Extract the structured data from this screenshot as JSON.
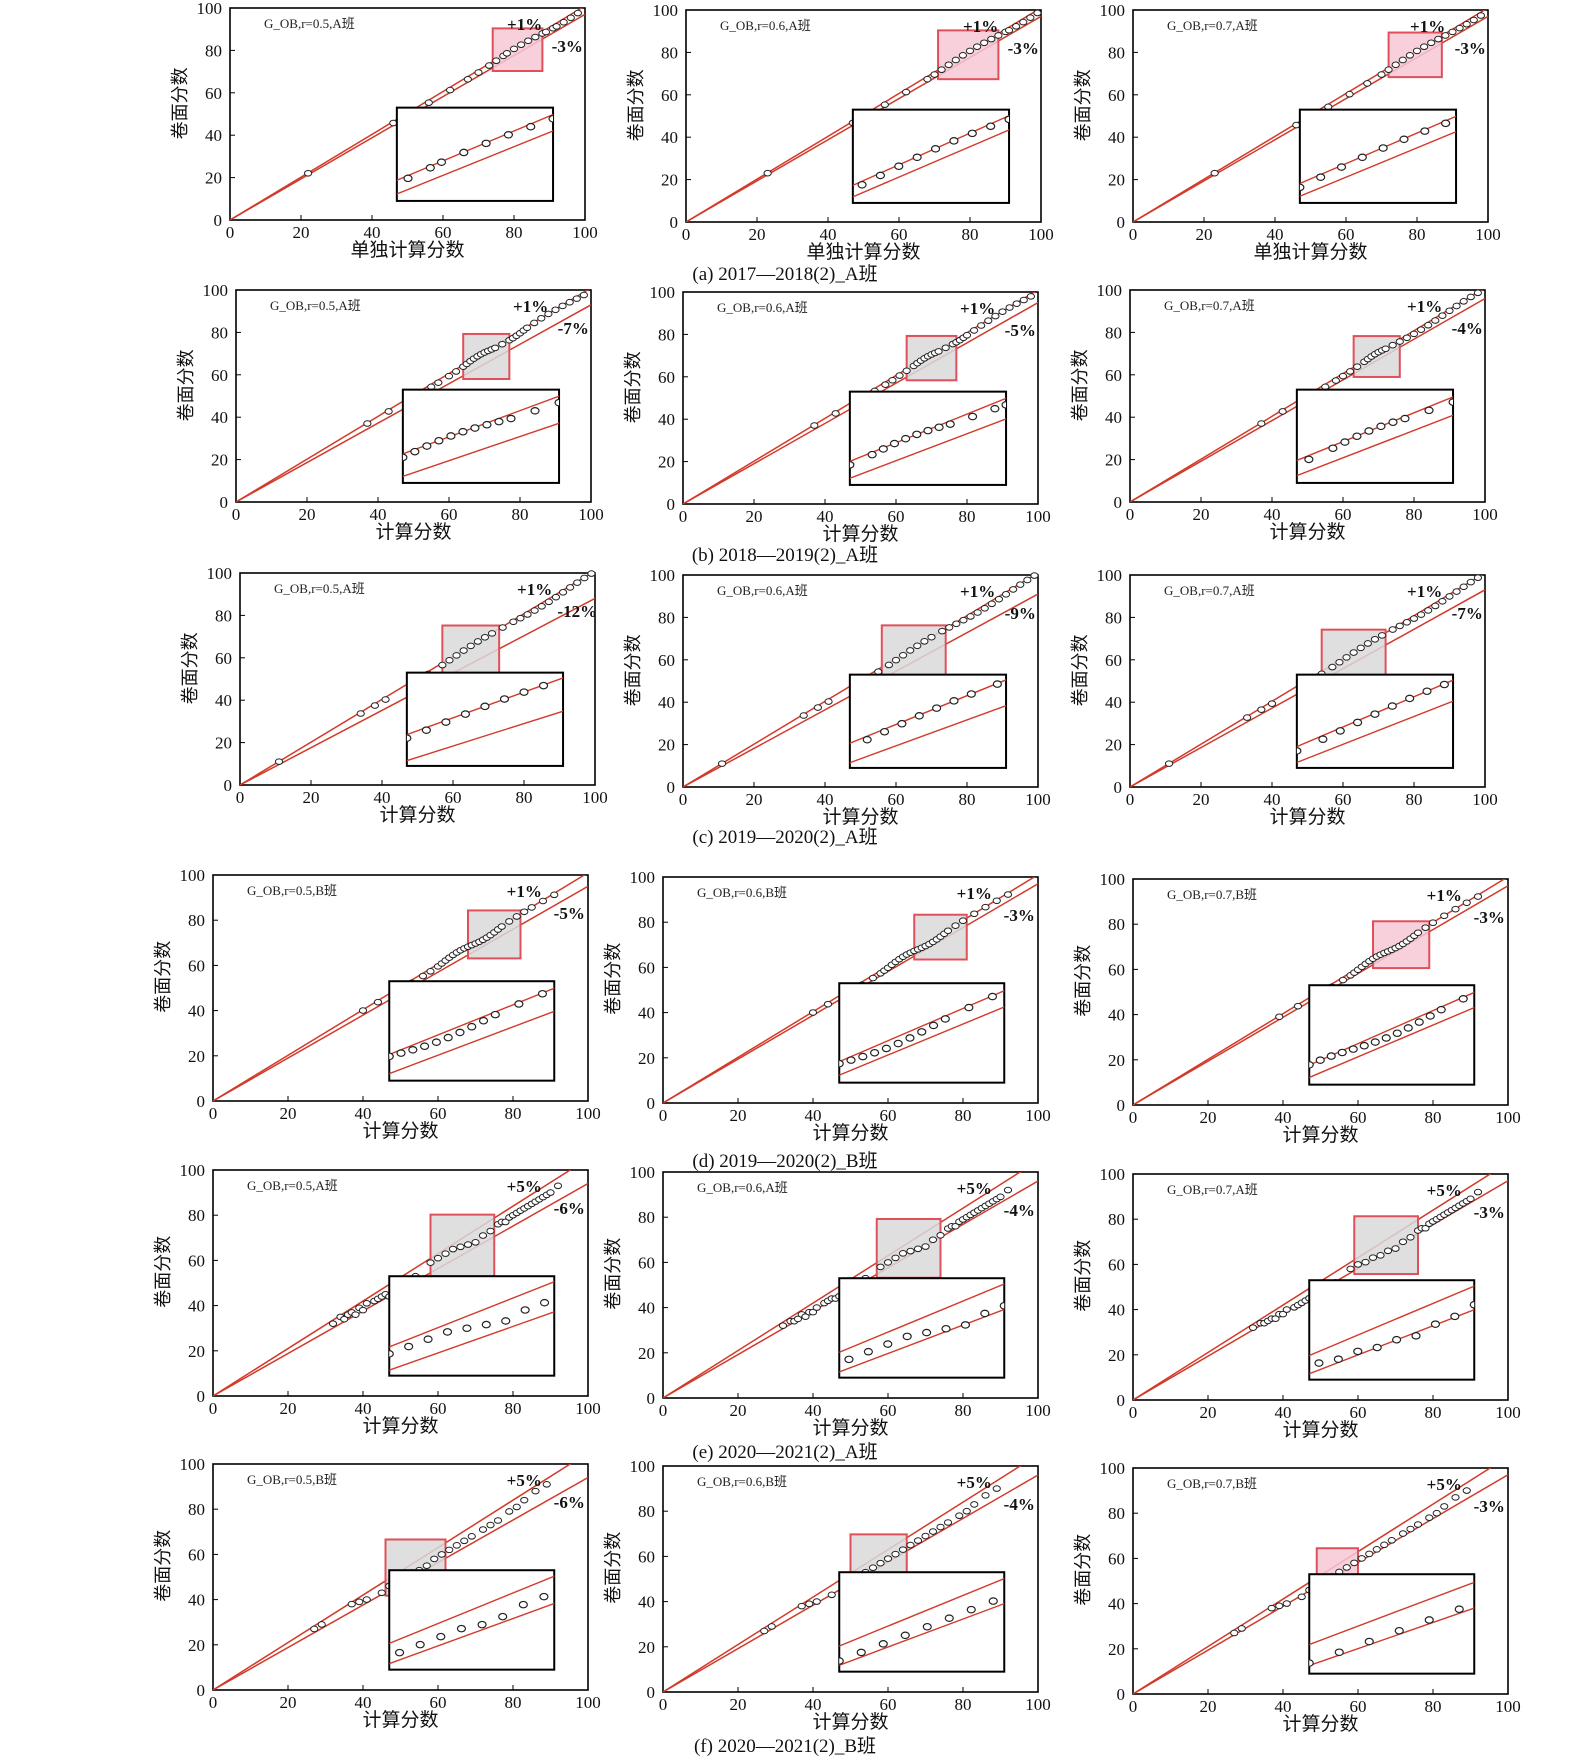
{
  "figure": {
    "y_axis_label": "卷面分数",
    "colors": {
      "line": "#d23a2a",
      "frame": "#000000",
      "box_pink": "#f6c8d6",
      "box_grey": "#d9d9d9",
      "box_edge": "#e0505a"
    },
    "rows": [
      {
        "caption": "(a) 2017—2018(2)_A班",
        "xlabel": "单独计算分数"
      },
      {
        "caption": "(b) 2018—2019(2)_A班",
        "xlabel": "计算分数"
      },
      {
        "caption": "(c) 2019—2020(2)_A班",
        "xlabel": "计算分数"
      },
      {
        "caption": "(d) 2019—2020(2)_B班",
        "xlabel": "计算分数"
      },
      {
        "caption": "(e) 2020—2021(2)_A班",
        "xlabel": "计算分数"
      },
      {
        "caption": "(f) 2020—2021(2)_B班",
        "xlabel": "计算分数"
      }
    ]
  },
  "chart_data": [
    {
      "type": "scatter",
      "panel": "a-1",
      "legend": "G_OB,r=0.5,A班",
      "upper_label": "+1%",
      "lower_label": "-3%",
      "upper_pct": 1,
      "lower_pct": -3,
      "box_color": "pink",
      "zoom_x": [
        74,
        88
      ],
      "xlim": [
        0,
        100
      ],
      "ylim": [
        0,
        100
      ],
      "ticks": [
        0,
        20,
        40,
        60,
        80,
        100
      ],
      "x": [
        22,
        46,
        48,
        56,
        62,
        67,
        70,
        73,
        75,
        77,
        78,
        80,
        82,
        84,
        86,
        88,
        89,
        91,
        92,
        94,
        96,
        98
      ]
    },
    {
      "type": "scatter",
      "panel": "a-2",
      "legend": "G_OB,r=0.6,A班",
      "upper_label": "+1%",
      "lower_label": "-3%",
      "upper_pct": 1,
      "lower_pct": -3,
      "box_color": "pink",
      "zoom_x": [
        71,
        88
      ],
      "xlim": [
        0,
        100
      ],
      "ylim": [
        0,
        100
      ],
      "ticks": [
        0,
        20,
        40,
        60,
        80,
        100
      ],
      "x": [
        23,
        47,
        50,
        56,
        62,
        68,
        70,
        72,
        74,
        76,
        78,
        80,
        82,
        84,
        86,
        88,
        90,
        91,
        93,
        95,
        97,
        99
      ]
    },
    {
      "type": "scatter",
      "panel": "a-3",
      "legend": "G_OB,r=0.7,A班",
      "upper_label": "+1%",
      "lower_label": "-3%",
      "upper_pct": 1,
      "lower_pct": -3,
      "box_color": "pink",
      "zoom_x": [
        72,
        87
      ],
      "xlim": [
        0,
        100
      ],
      "ylim": [
        0,
        100
      ],
      "ticks": [
        0,
        20,
        40,
        60,
        80,
        100
      ],
      "x": [
        23,
        46,
        48,
        55,
        61,
        66,
        70,
        72,
        74,
        76,
        78,
        80,
        82,
        84,
        86,
        88,
        90,
        92,
        94,
        96,
        98
      ]
    },
    {
      "type": "scatter",
      "panel": "b-1",
      "legend": "G_OB,r=0.5,A班",
      "upper_label": "+1%",
      "lower_label": "-7%",
      "upper_pct": 1,
      "lower_pct": -7,
      "box_color": "grey",
      "zoom_x": [
        64,
        77
      ],
      "xlim": [
        0,
        100
      ],
      "ylim": [
        0,
        100
      ],
      "ticks": [
        0,
        20,
        40,
        60,
        80,
        100
      ],
      "x": [
        37,
        43,
        52,
        55,
        57,
        60,
        62,
        64,
        65,
        66,
        67,
        68,
        69,
        70,
        71,
        72,
        73,
        75,
        77,
        78,
        79,
        80,
        81,
        82,
        84,
        86,
        88,
        90,
        92,
        94,
        96,
        98
      ]
    },
    {
      "type": "scatter",
      "panel": "b-2",
      "legend": "G_OB,r=0.6,A班",
      "upper_label": "+1%",
      "lower_label": "-5%",
      "upper_pct": 1,
      "lower_pct": -5,
      "box_color": "grey",
      "zoom_x": [
        63,
        77
      ],
      "xlim": [
        0,
        100
      ],
      "ylim": [
        0,
        100
      ],
      "ticks": [
        0,
        20,
        40,
        60,
        80,
        100
      ],
      "x": [
        37,
        43,
        51,
        54,
        57,
        59,
        61,
        63,
        65,
        66,
        67,
        68,
        69,
        70,
        71,
        72,
        74,
        76,
        77,
        78,
        79,
        80,
        82,
        84,
        86,
        88,
        90,
        92,
        94,
        96,
        98
      ]
    },
    {
      "type": "scatter",
      "panel": "b-3",
      "legend": "G_OB,r=0.7,A班",
      "upper_label": "+1%",
      "lower_label": "-4%",
      "upper_pct": 1,
      "lower_pct": -4,
      "box_color": "grey",
      "zoom_x": [
        63,
        76
      ],
      "xlim": [
        0,
        100
      ],
      "ylim": [
        0,
        100
      ],
      "ticks": [
        0,
        20,
        40,
        60,
        80,
        100
      ],
      "x": [
        37,
        43,
        52,
        55,
        58,
        60,
        62,
        64,
        66,
        67,
        68,
        69,
        70,
        71,
        72,
        74,
        76,
        78,
        80,
        82,
        84,
        86,
        88,
        90,
        92,
        94,
        96,
        98
      ]
    },
    {
      "type": "scatter",
      "panel": "c-1",
      "legend": "G_OB,r=0.5,A班",
      "upper_label": "+1%",
      "lower_label": "-12%",
      "upper_pct": 1,
      "lower_pct": -12,
      "box_color": "grey",
      "zoom_x": [
        57,
        73
      ],
      "xlim": [
        0,
        100
      ],
      "ylim": [
        0,
        100
      ],
      "ticks": [
        0,
        20,
        40,
        60,
        80,
        100
      ],
      "x": [
        11,
        34,
        38,
        41,
        50,
        53,
        57,
        59,
        61,
        63,
        65,
        67,
        69,
        71,
        74,
        77,
        79,
        81,
        83,
        85,
        87,
        89,
        91,
        93,
        95,
        97,
        99
      ]
    },
    {
      "type": "scatter",
      "panel": "c-2",
      "legend": "G_OB,r=0.6,A班",
      "upper_label": "+1%",
      "lower_label": "-9%",
      "upper_pct": 1,
      "lower_pct": -9,
      "box_color": "grey",
      "zoom_x": [
        56,
        74
      ],
      "xlim": [
        0,
        100
      ],
      "ylim": [
        0,
        100
      ],
      "ticks": [
        0,
        20,
        40,
        60,
        80,
        100
      ],
      "x": [
        11,
        34,
        38,
        41,
        51,
        55,
        58,
        60,
        62,
        64,
        66,
        68,
        70,
        73,
        75,
        77,
        79,
        81,
        83,
        85,
        87,
        89,
        91,
        93,
        95,
        97,
        99
      ]
    },
    {
      "type": "scatter",
      "panel": "c-3",
      "legend": "G_OB,r=0.7,A班",
      "upper_label": "+1%",
      "lower_label": "-7%",
      "upper_pct": 1,
      "lower_pct": -7,
      "box_color": "grey",
      "zoom_x": [
        54,
        72
      ],
      "xlim": [
        0,
        100
      ],
      "ylim": [
        0,
        100
      ],
      "ticks": [
        0,
        20,
        40,
        60,
        80,
        100
      ],
      "x": [
        11,
        33,
        37,
        40,
        50,
        54,
        57,
        59,
        61,
        63,
        65,
        67,
        69,
        71,
        74,
        76,
        78,
        80,
        82,
        84,
        86,
        88,
        90,
        92,
        94,
        96,
        98
      ]
    },
    {
      "type": "scatter",
      "panel": "d-1",
      "legend": "G_OB,r=0.5,B班",
      "upper_label": "+1%",
      "lower_label": "-5%",
      "upper_pct": 1,
      "lower_pct": -5,
      "box_color": "grey",
      "zoom_x": [
        68,
        82
      ],
      "xlim": [
        0,
        100
      ],
      "ylim": [
        0,
        100
      ],
      "ticks": [
        0,
        20,
        40,
        60,
        80,
        100
      ],
      "x": [
        40,
        44,
        49,
        53,
        56,
        58,
        60,
        61,
        62,
        63,
        64,
        65,
        66,
        67,
        68,
        69,
        70,
        71,
        72,
        73,
        74,
        75,
        76,
        77,
        79,
        81,
        83,
        85,
        88,
        91
      ]
    },
    {
      "type": "scatter",
      "panel": "d-2",
      "legend": "G_OB,r=0.6,B班",
      "upper_label": "+1%",
      "lower_label": "-3%",
      "upper_pct": 1,
      "lower_pct": -3,
      "box_color": "grey",
      "zoom_x": [
        67,
        81
      ],
      "xlim": [
        0,
        100
      ],
      "ylim": [
        0,
        100
      ],
      "ticks": [
        0,
        20,
        40,
        60,
        80,
        100
      ],
      "x": [
        40,
        44,
        49,
        53,
        56,
        58,
        59,
        60,
        61,
        62,
        63,
        64,
        65,
        66,
        67,
        68,
        69,
        70,
        71,
        72,
        73,
        74,
        75,
        76,
        78,
        80,
        83,
        86,
        89,
        92
      ]
    },
    {
      "type": "scatter",
      "panel": "d-3",
      "legend": "G_OB,r=0.7,B班",
      "upper_label": "+1%",
      "lower_label": "-3%",
      "upper_pct": 1,
      "lower_pct": -3,
      "box_color": "pink",
      "zoom_x": [
        64,
        79
      ],
      "xlim": [
        0,
        100
      ],
      "ylim": [
        0,
        100
      ],
      "ticks": [
        0,
        20,
        40,
        60,
        80,
        100
      ],
      "x": [
        39,
        44,
        49,
        53,
        56,
        58,
        59,
        60,
        61,
        62,
        63,
        64,
        65,
        66,
        67,
        68,
        69,
        70,
        71,
        72,
        73,
        74,
        75,
        76,
        78,
        80,
        83,
        86,
        89,
        92
      ]
    },
    {
      "type": "scatter",
      "panel": "e-1",
      "legend": "G_OB,r=0.5,A班",
      "upper_label": "+5%",
      "lower_label": "-6%",
      "upper_pct": 5,
      "lower_pct": -6,
      "box_color": "grey",
      "zoom_x": [
        58,
        75
      ],
      "xlim": [
        0,
        100
      ],
      "ylim": [
        0,
        100
      ],
      "ticks": [
        0,
        20,
        40,
        60,
        80,
        100
      ],
      "x": [
        32,
        34,
        35,
        36,
        37,
        38,
        39,
        40,
        41,
        43,
        44,
        45,
        46,
        47,
        48,
        49,
        50,
        51,
        52,
        54,
        58,
        60,
        62,
        64,
        66,
        68,
        70,
        72,
        74,
        76,
        77,
        78,
        79,
        80,
        81,
        82,
        83,
        84,
        85,
        86,
        87,
        88,
        89,
        90,
        92
      ],
      "y": [
        32,
        35,
        34,
        36,
        37,
        36,
        39,
        38,
        41,
        42,
        43,
        44,
        45,
        44,
        46,
        48,
        49,
        50,
        51,
        53,
        59,
        61,
        63,
        65,
        66,
        67,
        68,
        71,
        73,
        76,
        77,
        77,
        79,
        80,
        81,
        82,
        83,
        84,
        85,
        86,
        87,
        88,
        89,
        90,
        93
      ]
    },
    {
      "type": "scatter",
      "panel": "e-2",
      "legend": "G_OB,r=0.6,A班",
      "upper_label": "+5%",
      "lower_label": "-4%",
      "upper_pct": 5,
      "lower_pct": -4,
      "box_color": "grey",
      "zoom_x": [
        57,
        74
      ],
      "xlim": [
        0,
        100
      ],
      "ylim": [
        0,
        100
      ],
      "ticks": [
        0,
        20,
        40,
        60,
        80,
        100
      ],
      "x": [
        32,
        34,
        35,
        36,
        37,
        38,
        39,
        40,
        41,
        43,
        44,
        45,
        46,
        47,
        48,
        49,
        50,
        51,
        52,
        54,
        58,
        60,
        62,
        64,
        66,
        68,
        70,
        72,
        74,
        76,
        77,
        78,
        79,
        80,
        81,
        82,
        83,
        84,
        85,
        86,
        87,
        88,
        89,
        90,
        92
      ],
      "y": [
        32,
        34,
        34,
        35,
        37,
        36,
        38,
        38,
        40,
        42,
        43,
        44,
        44,
        45,
        46,
        47,
        48,
        49,
        50,
        53,
        58,
        60,
        62,
        64,
        65,
        66,
        67,
        70,
        72,
        75,
        76,
        76,
        78,
        79,
        80,
        81,
        82,
        83,
        84,
        85,
        86,
        87,
        88,
        89,
        92
      ]
    },
    {
      "type": "scatter",
      "panel": "e-3",
      "legend": "G_OB,r=0.7,A班",
      "upper_label": "+5%",
      "lower_label": "-3%",
      "upper_pct": 5,
      "lower_pct": -3,
      "box_color": "grey",
      "zoom_x": [
        59,
        76
      ],
      "xlim": [
        0,
        100
      ],
      "ylim": [
        0,
        100
      ],
      "ticks": [
        0,
        20,
        40,
        60,
        80,
        100
      ],
      "x": [
        32,
        34,
        35,
        36,
        37,
        38,
        39,
        40,
        41,
        43,
        44,
        45,
        46,
        47,
        48,
        49,
        50,
        51,
        52,
        54,
        58,
        60,
        62,
        64,
        66,
        68,
        70,
        72,
        74,
        76,
        77,
        78,
        79,
        80,
        81,
        82,
        83,
        84,
        85,
        86,
        87,
        88,
        89,
        90,
        92
      ],
      "y": [
        32,
        34,
        34,
        35,
        36,
        36,
        38,
        38,
        40,
        41,
        42,
        43,
        44,
        45,
        46,
        47,
        48,
        49,
        50,
        52,
        58,
        60,
        61,
        63,
        64,
        66,
        67,
        70,
        72,
        75,
        76,
        76,
        78,
        79,
        80,
        81,
        82,
        83,
        84,
        85,
        86,
        87,
        88,
        89,
        92
      ]
    },
    {
      "type": "scatter",
      "panel": "f-1",
      "legend": "G_OB,r=0.5,B班",
      "upper_label": "+5%",
      "lower_label": "-6%",
      "upper_pct": 5,
      "lower_pct": -6,
      "box_color": "grey",
      "zoom_x": [
        46,
        62
      ],
      "xlim": [
        0,
        100
      ],
      "ylim": [
        0,
        100
      ],
      "ticks": [
        0,
        20,
        40,
        60,
        80,
        100
      ],
      "x": [
        27,
        29,
        37,
        39,
        41,
        45,
        47,
        49,
        51,
        53,
        55,
        57,
        59,
        61,
        63,
        65,
        67,
        69,
        72,
        74,
        76,
        79,
        81,
        83,
        86,
        89
      ],
      "y": [
        27,
        29,
        38,
        39,
        40,
        43,
        46,
        48,
        50,
        52,
        53,
        55,
        58,
        60,
        62,
        64,
        66,
        68,
        71,
        73,
        75,
        79,
        81,
        84,
        88,
        91
      ]
    },
    {
      "type": "scatter",
      "panel": "f-2",
      "legend": "G_OB,r=0.6,B班",
      "upper_label": "+5%",
      "lower_label": "-4%",
      "upper_pct": 5,
      "lower_pct": -4,
      "box_color": "grey",
      "zoom_x": [
        50,
        65
      ],
      "xlim": [
        0,
        100
      ],
      "ylim": [
        0,
        100
      ],
      "ticks": [
        0,
        20,
        40,
        60,
        80,
        100
      ],
      "x": [
        27,
        29,
        37,
        39,
        41,
        45,
        48,
        50,
        52,
        54,
        56,
        58,
        60,
        62,
        64,
        66,
        68,
        70,
        72,
        74,
        76,
        79,
        81,
        83,
        86,
        89
      ],
      "y": [
        27,
        29,
        38,
        39,
        40,
        43,
        46,
        49,
        51,
        53,
        55,
        57,
        59,
        61,
        63,
        65,
        67,
        69,
        71,
        73,
        75,
        78,
        80,
        83,
        87,
        90
      ]
    },
    {
      "type": "scatter",
      "panel": "f-3",
      "legend": "G_OB,r=0.7,B班",
      "upper_label": "+5%",
      "lower_label": "-3%",
      "upper_pct": 5,
      "lower_pct": -3,
      "box_color": "pink",
      "zoom_x": [
        49,
        60
      ],
      "xlim": [
        0,
        100
      ],
      "ylim": [
        0,
        100
      ],
      "ticks": [
        0,
        20,
        40,
        60,
        80,
        100
      ],
      "x": [
        27,
        29,
        37,
        39,
        41,
        45,
        47,
        49,
        51,
        53,
        55,
        57,
        59,
        61,
        63,
        65,
        67,
        69,
        72,
        74,
        76,
        79,
        81,
        83,
        86,
        89
      ],
      "y": [
        27,
        29,
        38,
        39,
        40,
        43,
        46,
        48,
        50,
        52,
        54,
        56,
        58,
        60,
        62,
        64,
        66,
        68,
        71,
        73,
        75,
        78,
        80,
        83,
        87,
        90
      ]
    }
  ]
}
